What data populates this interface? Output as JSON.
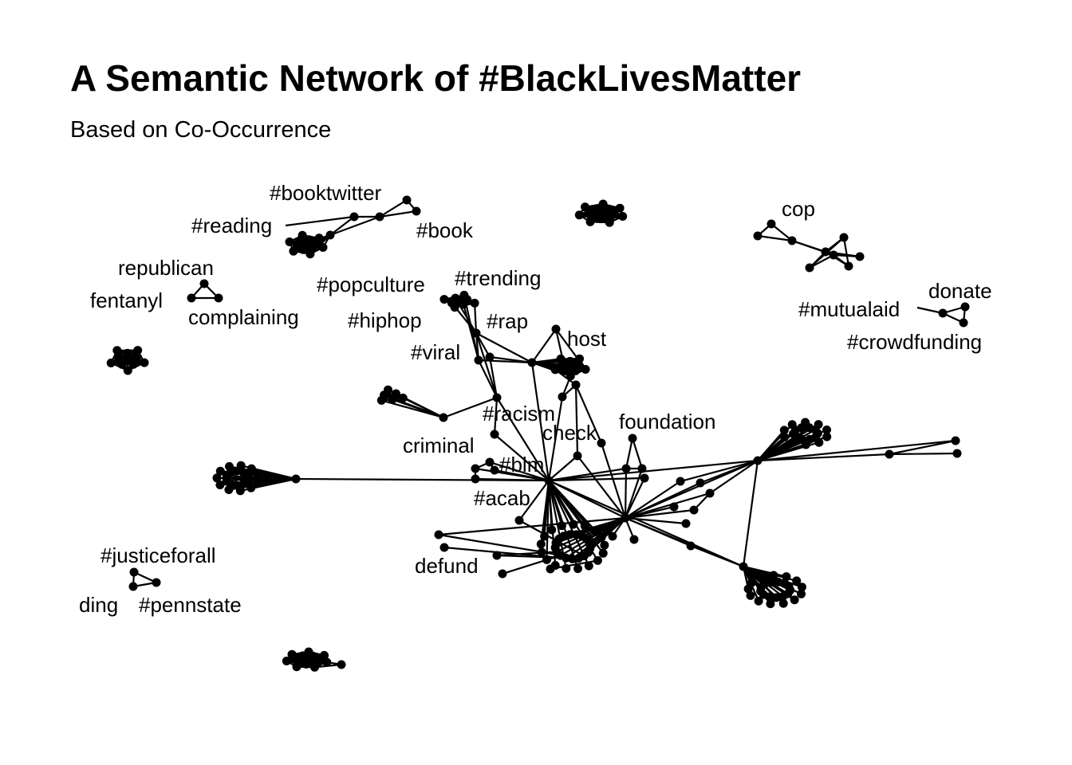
{
  "title": "A Semantic Network of #BlackLivesMatter",
  "subtitle": "Based on Co-Occurrence",
  "labels": {
    "booktwitter": "#booktwitter",
    "reading": "#reading",
    "book": "#book",
    "cop": "cop",
    "republican": "republican",
    "fentanyl": "fentanyl",
    "complaining": "complaining",
    "popculture": "#popculture",
    "trending": "#trending",
    "donate": "donate",
    "mutualaid": "#mutualaid",
    "crowdfunding": "#crowdfunding",
    "hiphop": "#hiphop",
    "rap": "#rap",
    "host": "host",
    "viral": "#viral",
    "racism": "#racism",
    "foundation": "foundation",
    "check": "check",
    "criminal": "criminal",
    "blm": "#blm",
    "acab": "#acab",
    "defund": "defund",
    "justiceforall": "#justiceforall",
    "ding": "ding",
    "pennstate": "#pennstate"
  }
}
